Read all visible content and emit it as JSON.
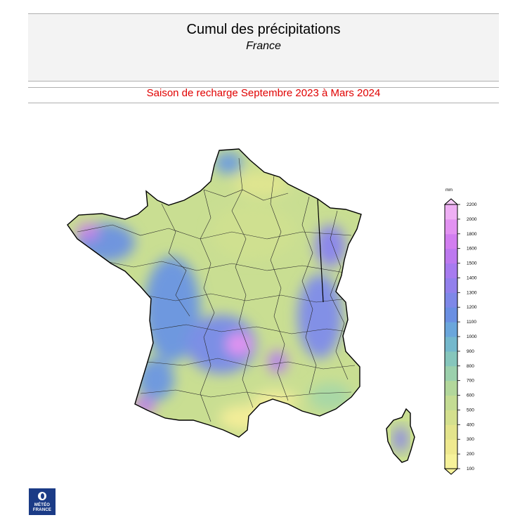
{
  "header": {
    "title": "Cumul des précipitations",
    "subtitle": "France",
    "period": "Saison de recharge  Septembre 2023 à Mars 2024"
  },
  "legend": {
    "unit": "mm",
    "ticks": [
      100,
      200,
      300,
      400,
      500,
      600,
      700,
      800,
      900,
      1000,
      1100,
      1200,
      1300,
      1400,
      1500,
      1600,
      1800,
      2000,
      2200
    ],
    "colors": [
      "#f6f29a",
      "#efe98f",
      "#e3e48c",
      "#d4e08e",
      "#c4dc93",
      "#b2d79b",
      "#9bd0ac",
      "#86c6bc",
      "#74b8cc",
      "#6aa6db",
      "#6a8fe2",
      "#7e88e8",
      "#9280ec",
      "#a77bef",
      "#bd79ef",
      "#d27ef0",
      "#e292f1",
      "#eeaff4",
      "#f6cdf7"
    ]
  },
  "logo": {
    "line1": "MÉTÉO",
    "line2": "FRANCE"
  },
  "map": {
    "regions": [
      {
        "name": "north-coast",
        "color": "#6f9fdb"
      },
      {
        "name": "brittany-west",
        "color": "#8a8fe6"
      },
      {
        "name": "atlantic-west",
        "color": "#6e98df"
      },
      {
        "name": "basque-coast",
        "color": "#c07ee8"
      },
      {
        "name": "massif-central",
        "color": "#8d83e8"
      },
      {
        "name": "alps-vosges",
        "color": "#7f8de6"
      },
      {
        "name": "mediterranean-dry",
        "color": "#f2ec99"
      },
      {
        "name": "interior",
        "color": "#c9de92"
      }
    ]
  }
}
